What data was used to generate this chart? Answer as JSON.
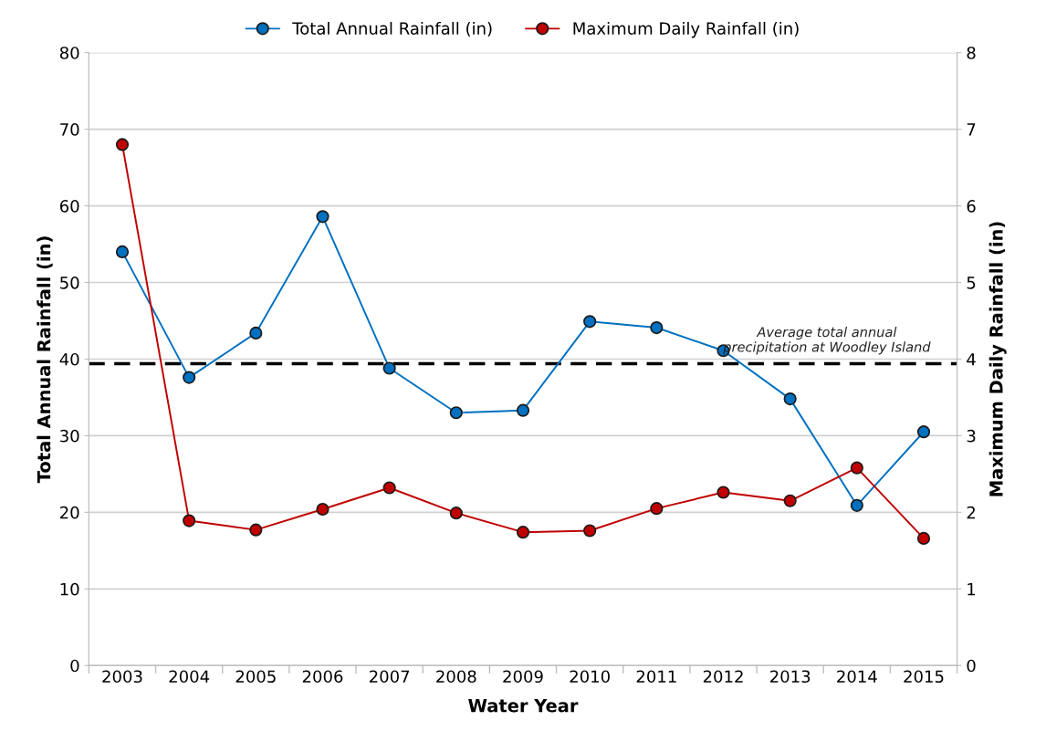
{
  "chart_data": {
    "type": "line",
    "xlabel": "Water Year",
    "ylabel": "Total Annual Rainfall (in)",
    "y2label": "Maximum Daily Rainfall (in)",
    "categories": [
      "2003",
      "2004",
      "2005",
      "2006",
      "2007",
      "2008",
      "2009",
      "2010",
      "2011",
      "2012",
      "2013",
      "2014",
      "2015"
    ],
    "series": [
      {
        "name": "Total Annual Rainfall (in)",
        "color": "#0070c0",
        "values": [
          54.0,
          37.6,
          43.4,
          58.6,
          38.8,
          33.0,
          33.3,
          44.9,
          44.1,
          41.1,
          34.8,
          20.9,
          30.5
        ]
      },
      {
        "name": "Maximum Daily Rainfall (in)",
        "color": "#c00000",
        "axis": "y2",
        "values": [
          6.8,
          1.89,
          1.77,
          2.04,
          2.32,
          1.99,
          1.74,
          1.76,
          2.05,
          2.26,
          2.15,
          2.58,
          1.66
        ]
      }
    ],
    "ylim": [
      0,
      80
    ],
    "yticks": [
      0,
      10,
      20,
      30,
      40,
      50,
      60,
      70,
      80
    ],
    "y2lim": [
      0,
      8
    ],
    "y2ticks": [
      0,
      1,
      2,
      3,
      4,
      5,
      6,
      7,
      8
    ],
    "ref_lines": [
      {
        "axis": "y",
        "value": 39.4,
        "label": "Average total annual precipitation at Woodley Island",
        "color": "#000000",
        "line_style": "dashed"
      }
    ],
    "grid": "y",
    "legend": "top",
    "marker": "circle",
    "line_style": "solid"
  }
}
